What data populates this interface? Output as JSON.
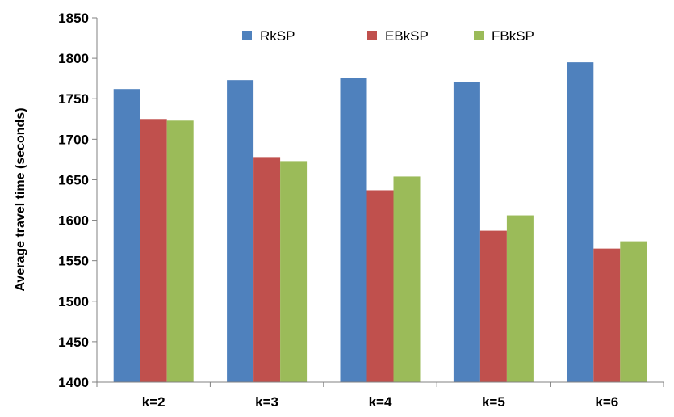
{
  "chart_data": {
    "type": "bar",
    "title": "",
    "xlabel": "",
    "ylabel": "Average travel time (seconds)",
    "ylim": [
      1400,
      1850
    ],
    "yticks": [
      1400,
      1450,
      1500,
      1550,
      1600,
      1650,
      1700,
      1750,
      1800,
      1850
    ],
    "grid": false,
    "legend_position": "top",
    "categories": [
      "k=2",
      "k=3",
      "k=4",
      "k=5",
      "k=6"
    ],
    "series": [
      {
        "name": "RkSP",
        "color": "#4f81bd",
        "values": [
          1762,
          1773,
          1776,
          1771,
          1795
        ]
      },
      {
        "name": "EBkSP",
        "color": "#c0504d",
        "values": [
          1725,
          1678,
          1637,
          1587,
          1565
        ]
      },
      {
        "name": "FBkSP",
        "color": "#9bbb59",
        "values": [
          1723,
          1673,
          1654,
          1606,
          1574
        ]
      }
    ]
  }
}
